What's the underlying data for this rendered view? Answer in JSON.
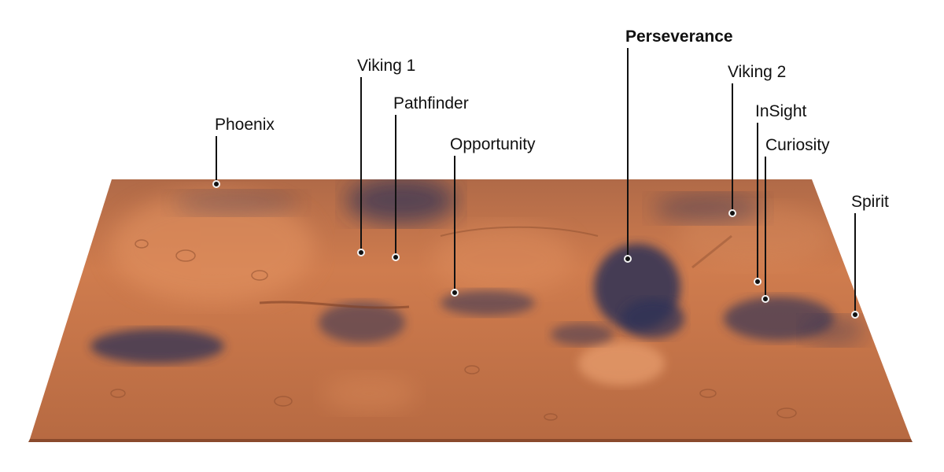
{
  "map": {
    "colors": {
      "surface_light": "#d9875a",
      "surface_mid": "#b8673f",
      "surface_dark": "#2f3357",
      "surface_edge": "#8a4a2c",
      "label": "#111111"
    },
    "sites": [
      {
        "id": "phoenix",
        "name": "Phoenix",
        "bold": false
      },
      {
        "id": "viking-1",
        "name": "Viking 1",
        "bold": false
      },
      {
        "id": "pathfinder",
        "name": "Pathfinder",
        "bold": false
      },
      {
        "id": "opportunity",
        "name": "Opportunity",
        "bold": false
      },
      {
        "id": "perseverance",
        "name": "Perseverance",
        "bold": true
      },
      {
        "id": "viking-2",
        "name": "Viking 2",
        "bold": false
      },
      {
        "id": "insight",
        "name": "InSight",
        "bold": false
      },
      {
        "id": "curiosity",
        "name": "Curiosity",
        "bold": false
      },
      {
        "id": "spirit",
        "name": "Spirit",
        "bold": false
      }
    ]
  }
}
